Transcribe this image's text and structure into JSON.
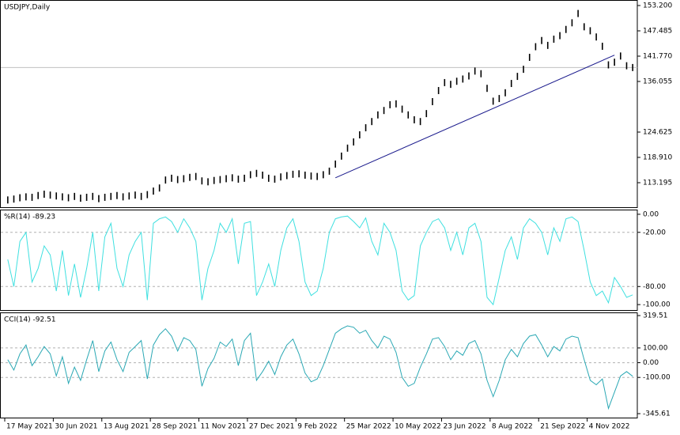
{
  "chart_data": [
    {
      "type": "ohlc",
      "title": "USDJPY,Daily",
      "color": "#000000",
      "categories": [
        "17 May 2021",
        null,
        null,
        null,
        null,
        null,
        null,
        null,
        "30 Jun 2021",
        null,
        null,
        null,
        null,
        null,
        null,
        null,
        "13 Aug 2021",
        null,
        null,
        null,
        null,
        null,
        null,
        null,
        "28 Sep 2021",
        null,
        null,
        null,
        null,
        null,
        null,
        null,
        "11 Nov 2021",
        null,
        null,
        null,
        null,
        null,
        null,
        null,
        "27 Dec 2021",
        null,
        null,
        null,
        null,
        null,
        null,
        null,
        "9 Feb 2022",
        null,
        null,
        null,
        null,
        null,
        null,
        null,
        "25 Mar 2022",
        null,
        null,
        null,
        null,
        null,
        null,
        null,
        "10 May 2022",
        null,
        null,
        null,
        null,
        null,
        null,
        null,
        "23 Jun 2022",
        null,
        null,
        null,
        null,
        null,
        null,
        null,
        "8 Aug 2022",
        null,
        null,
        null,
        null,
        null,
        null,
        null,
        "21 Sep 2022",
        null,
        null,
        null,
        null,
        null,
        null,
        null,
        "4 Nov 2022",
        null,
        null,
        null,
        null,
        null,
        null,
        null
      ],
      "high": [
        110.1,
        110.3,
        110.6,
        110.8,
        110.7,
        111.1,
        111.4,
        111.2,
        111.0,
        110.8,
        110.6,
        110.9,
        110.5,
        110.7,
        110.9,
        110.4,
        110.7,
        110.9,
        111.1,
        110.8,
        111.0,
        111.2,
        110.9,
        111.3,
        112.1,
        112.8,
        114.6,
        115.0,
        114.7,
        114.9,
        115.2,
        115.4,
        114.4,
        114.2,
        114.5,
        114.7,
        114.9,
        115.1,
        114.8,
        115.0,
        115.8,
        116.1,
        115.7,
        115.0,
        114.8,
        115.3,
        115.6,
        115.9,
        116.0,
        115.7,
        115.5,
        115.4,
        115.8,
        116.6,
        118.2,
        120.0,
        121.8,
        123.2,
        124.8,
        126.4,
        127.8,
        129.3,
        130.3,
        131.6,
        131.8,
        130.6,
        129.3,
        128.2,
        127.8,
        129.6,
        132.3,
        134.8,
        136.6,
        136.2,
        136.9,
        137.4,
        138.1,
        139.2,
        138.6,
        135.3,
        132.4,
        133.0,
        134.3,
        136.4,
        138.0,
        139.6,
        142.3,
        144.7,
        146.1,
        145.0,
        146.4,
        147.2,
        148.6,
        150.1,
        152.2,
        149.2,
        148.3,
        146.9,
        144.8,
        140.6,
        141.2,
        142.6,
        140.4,
        140.0
      ],
      "low": [
        108.5,
        108.7,
        109.0,
        109.2,
        109.1,
        109.5,
        109.8,
        109.6,
        109.4,
        109.2,
        109.0,
        109.3,
        108.9,
        109.1,
        109.3,
        108.8,
        109.1,
        109.3,
        109.5,
        109.2,
        109.4,
        109.6,
        109.3,
        109.7,
        110.5,
        111.2,
        113.0,
        113.4,
        113.1,
        113.3,
        113.6,
        113.8,
        112.8,
        112.6,
        112.9,
        113.1,
        113.3,
        113.5,
        113.2,
        113.4,
        114.2,
        114.5,
        114.1,
        113.4,
        113.2,
        113.7,
        114.0,
        114.3,
        114.4,
        114.1,
        113.9,
        113.8,
        114.2,
        115.0,
        116.6,
        118.4,
        120.2,
        121.6,
        123.2,
        124.8,
        126.2,
        127.7,
        128.7,
        130.0,
        130.2,
        129.0,
        127.7,
        126.6,
        126.2,
        128.0,
        130.7,
        133.2,
        135.0,
        134.6,
        135.3,
        135.8,
        136.5,
        137.6,
        137.0,
        133.7,
        130.8,
        131.4,
        132.7,
        134.8,
        136.4,
        138.0,
        140.7,
        143.1,
        144.5,
        143.4,
        144.8,
        145.6,
        147.0,
        148.5,
        150.6,
        147.6,
        146.7,
        145.3,
        143.2,
        139.0,
        139.6,
        141.0,
        138.8,
        138.4
      ],
      "ylim": [
        107.66,
        154.09
      ],
      "yticks": [
        {
          "value": 153.2,
          "label": "153.200"
        },
        {
          "value": 147.485,
          "label": "147.485"
        },
        {
          "value": 141.77,
          "label": "141.770"
        },
        {
          "value": 136.055,
          "label": "136.055"
        },
        {
          "value": 124.625,
          "label": "124.625"
        },
        {
          "value": 118.91,
          "label": "118.910"
        },
        {
          "value": 113.195,
          "label": "113.195"
        }
      ],
      "trend_line": {
        "x": [
          54,
          100
        ],
        "y": [
          114.3,
          142.0
        ],
        "color": "#1a1a8c"
      },
      "price_line": {
        "value": 139.2,
        "color": "#c0c0c0"
      }
    },
    {
      "type": "line",
      "title": "%R(14) -89.23",
      "color": "#3fe0e0",
      "values": [
        -50,
        -80,
        -30,
        -20,
        -75,
        -60,
        -35,
        -45,
        -85,
        -40,
        -90,
        -55,
        -92,
        -60,
        -20,
        -85,
        -25,
        -10,
        -60,
        -80,
        -45,
        -30,
        -20,
        -95,
        -10,
        -5,
        -3,
        -8,
        -20,
        -5,
        -15,
        -30,
        -95,
        -60,
        -40,
        -10,
        -20,
        -5,
        -55,
        -10,
        -8,
        -90,
        -75,
        -55,
        -80,
        -40,
        -15,
        -5,
        -30,
        -75,
        -90,
        -85,
        -60,
        -20,
        -5,
        -3,
        -2,
        -8,
        -15,
        -4,
        -30,
        -45,
        -10,
        -20,
        -40,
        -85,
        -95,
        -90,
        -35,
        -20,
        -8,
        -5,
        -15,
        -40,
        -20,
        -45,
        -15,
        -10,
        -30,
        -92,
        -100,
        -70,
        -40,
        -25,
        -50,
        -15,
        -5,
        -10,
        -20,
        -45,
        -15,
        -30,
        -5,
        -3,
        -8,
        -40,
        -75,
        -90,
        -85,
        -98,
        -70,
        -80,
        -92,
        -89.23
      ],
      "ylim": [
        -106.03,
        4.31
      ],
      "yticks": [
        {
          "value": 0,
          "label": "0.00"
        },
        {
          "value": -20,
          "label": "-20.00"
        },
        {
          "value": -80,
          "label": "-80.00"
        },
        {
          "value": -100,
          "label": "-100.00"
        }
      ],
      "levels": [
        -20,
        -80
      ]
    },
    {
      "type": "line",
      "title": "CCI(14) -92.51",
      "color": "#2aa8b4",
      "values": [
        20,
        -50,
        60,
        120,
        -20,
        40,
        110,
        60,
        -90,
        40,
        -140,
        -30,
        -120,
        20,
        150,
        -60,
        80,
        140,
        20,
        -60,
        70,
        110,
        150,
        -110,
        120,
        190,
        230,
        180,
        80,
        170,
        150,
        90,
        -160,
        -40,
        30,
        140,
        110,
        160,
        -20,
        150,
        200,
        -120,
        -60,
        10,
        -80,
        40,
        120,
        160,
        60,
        -70,
        -130,
        -110,
        -20,
        90,
        200,
        230,
        250,
        240,
        200,
        220,
        150,
        100,
        180,
        160,
        70,
        -100,
        -160,
        -140,
        -30,
        60,
        160,
        170,
        110,
        20,
        80,
        50,
        130,
        150,
        60,
        -120,
        -230,
        -120,
        20,
        90,
        40,
        130,
        180,
        190,
        120,
        40,
        110,
        80,
        160,
        180,
        170,
        20,
        -120,
        -150,
        -110,
        -310,
        -200,
        -90,
        -60,
        -92.51
      ],
      "ylim": [
        -372.4,
        335.6
      ],
      "yticks": [
        {
          "value": 319.51,
          "label": "319.51"
        },
        {
          "value": 100,
          "label": "100.00"
        },
        {
          "value": 0,
          "label": "0.00"
        },
        {
          "value": -100,
          "label": "-100.00"
        },
        {
          "value": -345.61,
          "label": "-345.61"
        }
      ],
      "levels": [
        100,
        0,
        -100
      ]
    }
  ]
}
